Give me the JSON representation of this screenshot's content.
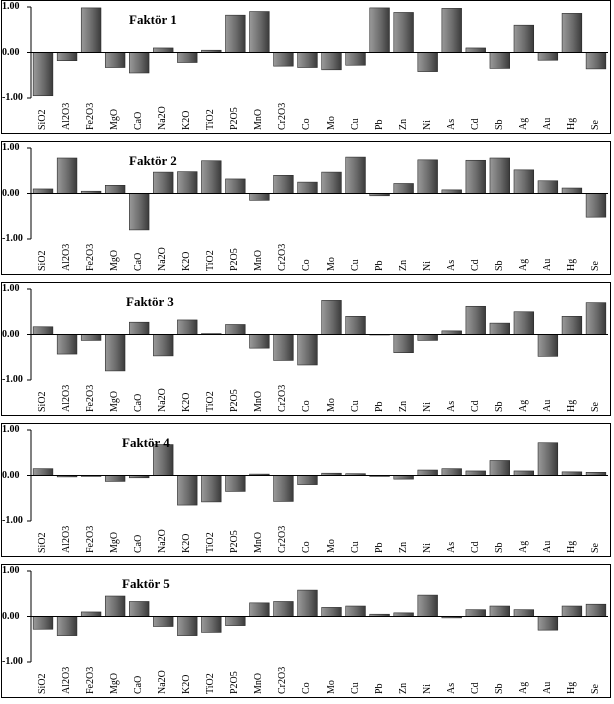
{
  "chart_data": [
    {
      "type": "bar",
      "title": "Faktör 1",
      "categories": [
        "SiO2",
        "Al2O3",
        "Fe2O3",
        "MgO",
        "CaO",
        "Na2O",
        "K2O",
        "TiO2",
        "P2O5",
        "MnO",
        "Cr2O3",
        "Co",
        "Mo",
        "Cu",
        "Pb",
        "Zn",
        "Ni",
        "As",
        "Cd",
        "Sb",
        "Ag",
        "Au",
        "Hg",
        "Se"
      ],
      "values": [
        -0.95,
        -0.18,
        0.98,
        -0.33,
        -0.45,
        0.1,
        -0.22,
        0.05,
        0.82,
        0.9,
        -0.3,
        -0.33,
        -0.38,
        -0.28,
        0.98,
        0.88,
        -0.42,
        0.97,
        0.1,
        -0.35,
        0.6,
        -0.17,
        0.86,
        -0.36
      ],
      "ylim": [
        -1,
        1
      ],
      "yticks": [
        "1.00",
        "0.00",
        "-1.00"
      ],
      "grid": false
    },
    {
      "type": "bar",
      "title": "Faktör 2",
      "categories": [
        "SiO2",
        "Al2O3",
        "Fe2O3",
        "MgO",
        "CaO",
        "Na2O",
        "K2O",
        "TiO2",
        "P2O5",
        "MnO",
        "Cr2O3",
        "Co",
        "Mo",
        "Cu",
        "Pb",
        "Zn",
        "Ni",
        "As",
        "Cd",
        "Sb",
        "Ag",
        "Au",
        "Hg",
        "Se"
      ],
      "values": [
        0.1,
        0.78,
        0.05,
        0.18,
        -0.8,
        0.47,
        0.48,
        0.72,
        0.32,
        -0.15,
        0.4,
        0.25,
        0.47,
        0.8,
        -0.05,
        0.22,
        0.74,
        0.08,
        0.73,
        0.78,
        0.52,
        0.28,
        0.12,
        -0.52
      ],
      "ylim": [
        -1,
        1
      ],
      "yticks": [
        "1.00",
        "0.00",
        "-1.00"
      ],
      "grid": false
    },
    {
      "type": "bar",
      "title": "Faktör 3",
      "categories": [
        "SiO2",
        "Al2O3",
        "Fe2O3",
        "MgO",
        "CaO",
        "Na2O",
        "K2O",
        "TiO2",
        "P2O5",
        "MnO",
        "Cr2O3",
        "Co",
        "Mo",
        "Cu",
        "Pb",
        "Zn",
        "Ni",
        "As",
        "Cd",
        "Sb",
        "Ag",
        "Au",
        "Hg",
        "Se"
      ],
      "values": [
        0.17,
        -0.43,
        -0.13,
        -0.8,
        0.27,
        -0.47,
        0.32,
        0.02,
        0.22,
        -0.3,
        -0.57,
        -0.67,
        0.75,
        0.4,
        0.0,
        -0.4,
        -0.13,
        0.08,
        0.62,
        0.25,
        0.5,
        -0.48,
        0.4,
        0.7
      ],
      "ylim": [
        -1,
        1
      ],
      "yticks": [
        "1.00",
        "0.00",
        "-1.00"
      ],
      "grid": false
    },
    {
      "type": "bar",
      "title": "Faktör 4",
      "categories": [
        "SiO2",
        "Al2O3",
        "Fe2O3",
        "MgO",
        "CaO",
        "Na2O",
        "K2O",
        "TiO2",
        "P2O5",
        "MnO",
        "Cr2O3",
        "Co",
        "Mo",
        "Cu",
        "Pb",
        "Zn",
        "Ni",
        "As",
        "Cd",
        "Sb",
        "Ag",
        "Au",
        "Hg",
        "Se"
      ],
      "values": [
        0.15,
        -0.03,
        -0.02,
        -0.13,
        -0.05,
        0.68,
        -0.65,
        -0.58,
        -0.35,
        0.03,
        -0.57,
        -0.2,
        0.05,
        0.04,
        -0.02,
        -0.08,
        0.12,
        0.15,
        0.1,
        0.33,
        0.1,
        0.72,
        0.08,
        0.07
      ],
      "ylim": [
        -1,
        1
      ],
      "yticks": [
        "1.00",
        "0.00",
        "-1.00"
      ],
      "grid": false
    },
    {
      "type": "bar",
      "title": "Faktör 5",
      "categories": [
        "SiO2",
        "Al2O3",
        "Fe2O3",
        "MgO",
        "CaO",
        "Na2O",
        "K2O",
        "TiO2",
        "P2O5",
        "MnO",
        "Cr2O3",
        "Co",
        "Mo",
        "Cu",
        "Pb",
        "Zn",
        "Ni",
        "As",
        "Cd",
        "Sb",
        "Ag",
        "Au",
        "Hg",
        "Se"
      ],
      "values": [
        -0.28,
        -0.42,
        0.1,
        0.45,
        0.33,
        -0.22,
        -0.42,
        -0.35,
        -0.2,
        0.3,
        0.33,
        0.58,
        0.2,
        0.23,
        0.05,
        0.08,
        0.47,
        -0.03,
        0.15,
        0.23,
        0.15,
        -0.3,
        0.23,
        0.27
      ],
      "ylim": [
        -1,
        1
      ],
      "yticks": [
        "1.00",
        "0.00",
        "-1.00"
      ],
      "grid": false
    }
  ],
  "style": {
    "bar_fill_light": "#9a9a9a",
    "bar_fill_mid": "#6a6a6a",
    "bar_fill_dark": "#3a3a3a",
    "axis_color": "#000000"
  }
}
